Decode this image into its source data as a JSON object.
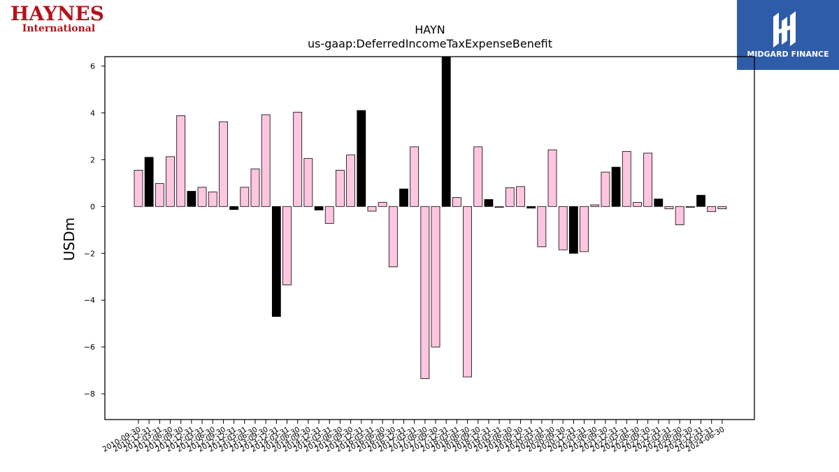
{
  "logos": {
    "left": {
      "line1": "HAYNES",
      "line2": "International",
      "color": "#b5121b"
    },
    "right": {
      "text": "MIDGARD FINANCE",
      "bg": "#2f5ca8"
    }
  },
  "chart_data": {
    "type": "bar",
    "title": "HAYN",
    "subtitle": "us-gaap:DeferredIncomeTaxExpenseBenefit",
    "ylabel": "USDm",
    "xlabel": "",
    "ylim": [
      -9.1,
      6.4
    ],
    "yticks": [
      -8,
      -6,
      -4,
      -2,
      0,
      2,
      4,
      6
    ],
    "grid": false,
    "colors": {
      "annual": "#000000",
      "quarterly": "#ffc6e0",
      "edge": "#000000"
    },
    "categories": [
      "2010-09-30",
      "2010-12-31",
      "2011-03-31",
      "2011-06-30",
      "2011-09-30",
      "2011-12-31",
      "2012-03-31",
      "2012-06-30",
      "2012-09-30",
      "2012-12-31",
      "2013-03-31",
      "2013-06-30",
      "2013-09-30",
      "2013-12-31",
      "2014-03-31",
      "2014-06-30",
      "2014-09-30",
      "2014-12-31",
      "2015-03-31",
      "2015-06-30",
      "2015-09-30",
      "2015-12-31",
      "2016-03-31",
      "2016-06-30",
      "2016-09-30",
      "2016-12-31",
      "2017-03-31",
      "2017-06-30",
      "2017-09-30",
      "2017-12-31",
      "2018-03-31",
      "2018-06-30",
      "2018-09-30",
      "2018-12-31",
      "2019-03-31",
      "2019-06-30",
      "2019-09-30",
      "2019-12-31",
      "2020-03-31",
      "2020-06-30",
      "2020-09-30",
      "2020-12-31",
      "2021-03-31",
      "2021-06-30",
      "2021-09-30",
      "2021-12-31",
      "2022-03-31",
      "2022-06-30",
      "2022-09-30",
      "2022-12-31",
      "2023-03-31",
      "2023-06-30",
      "2023-09-30",
      "2023-12-31",
      "2024-03-31",
      "2024-06-30"
    ],
    "values": [
      1.55,
      2.1,
      0.98,
      2.13,
      3.88,
      0.65,
      0.82,
      0.62,
      3.62,
      -0.13,
      0.82,
      1.6,
      3.92,
      -4.7,
      -3.35,
      4.03,
      2.05,
      -0.15,
      -0.72,
      1.55,
      2.2,
      4.1,
      -0.2,
      0.18,
      -2.58,
      0.75,
      2.55,
      -7.35,
      -6.0,
      6.4,
      0.38,
      -7.28,
      2.55,
      0.3,
      -0.04,
      0.8,
      0.85,
      -0.07,
      -1.72,
      2.42,
      -1.85,
      -2.0,
      -1.93,
      0.07,
      1.47,
      1.68,
      2.35,
      0.17,
      2.28,
      0.32,
      -0.1,
      -0.78,
      -0.04,
      0.48,
      -0.22,
      -0.1
    ],
    "annual": [
      false,
      true,
      false,
      false,
      false,
      true,
      false,
      false,
      false,
      true,
      false,
      false,
      false,
      true,
      false,
      false,
      false,
      true,
      false,
      false,
      false,
      true,
      false,
      false,
      false,
      true,
      false,
      false,
      false,
      true,
      false,
      false,
      false,
      true,
      false,
      false,
      false,
      true,
      false,
      false,
      false,
      true,
      false,
      false,
      false,
      true,
      false,
      false,
      false,
      true,
      false,
      false,
      false,
      true,
      false,
      false
    ]
  }
}
